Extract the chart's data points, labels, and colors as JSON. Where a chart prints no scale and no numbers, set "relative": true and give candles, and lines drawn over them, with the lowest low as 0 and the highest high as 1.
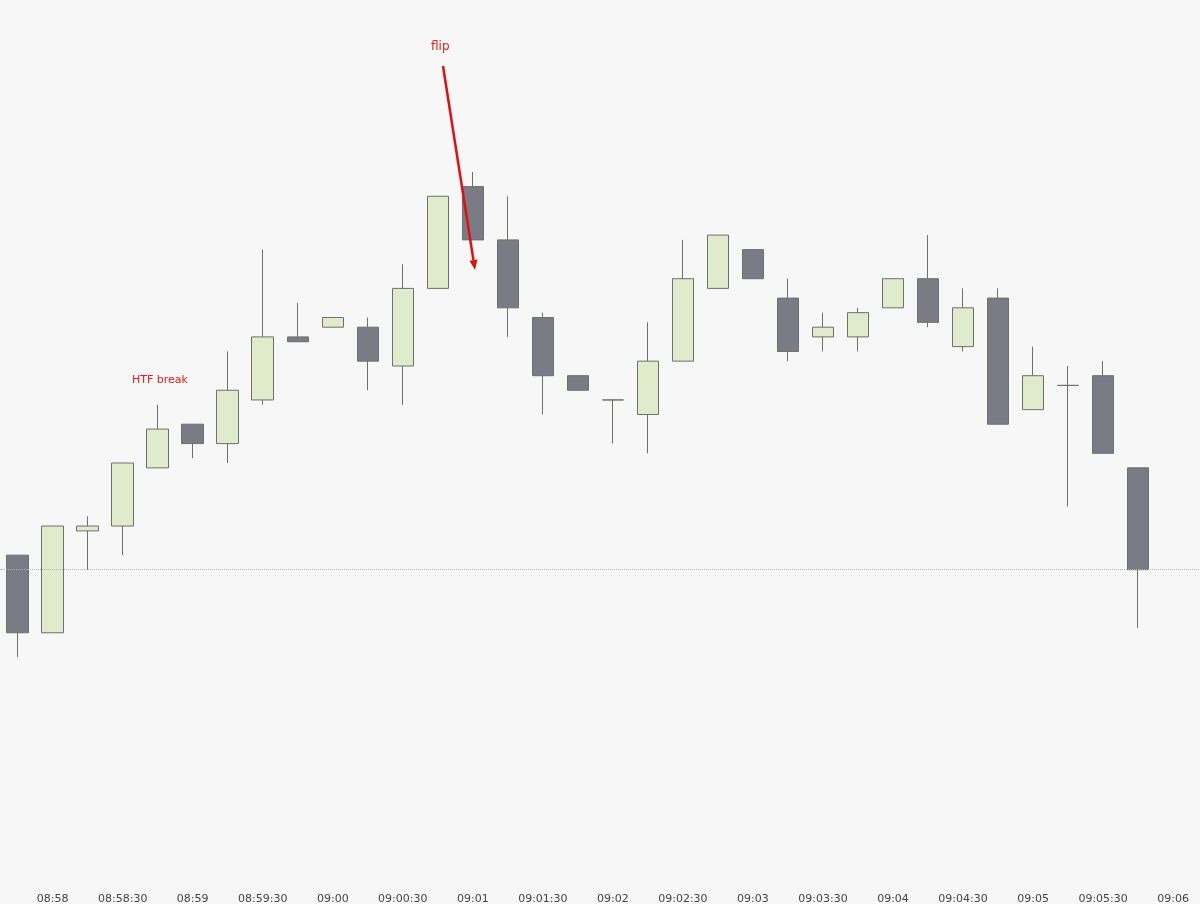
{
  "chart_data": {
    "type": "candlestick",
    "relative": true,
    "x": [
      8.9625,
      8.966667,
      8.970833,
      8.975,
      8.979167,
      8.983333,
      8.9875,
      8.991667,
      8.995833,
      9,
      9.004167,
      9.008333,
      9.0125,
      9.016667,
      9.020833,
      9.025,
      9.029167,
      9.033333,
      9.0375,
      9.041667,
      9.045833,
      9.05,
      9.054167,
      9.058333,
      9.0625,
      9.066667,
      9.070833,
      9.075,
      9.079167,
      9.083333,
      9.0875,
      9.091667,
      9.095833
    ],
    "ohlc": [
      [
        0.21,
        0.21,
        0,
        0.05
      ],
      [
        0.05,
        0.27,
        0.05,
        0.27
      ],
      [
        0.26,
        0.29,
        0.18,
        0.27
      ],
      [
        0.27,
        0.4,
        0.21,
        0.4
      ],
      [
        0.39,
        0.52,
        0.39,
        0.47
      ],
      [
        0.48,
        0.48,
        0.41,
        0.44
      ],
      [
        0.44,
        0.63,
        0.4,
        0.55
      ],
      [
        0.53,
        0.84,
        0.52,
        0.66
      ],
      [
        0.66,
        0.73,
        0.65,
        0.65
      ],
      [
        0.68,
        0.7,
        0.68,
        0.7
      ],
      [
        0.68,
        0.7,
        0.55,
        0.61
      ],
      [
        0.6,
        0.81,
        0.52,
        0.76
      ],
      [
        0.76,
        0.95,
        0.76,
        0.95
      ],
      [
        0.97,
        1,
        0.86,
        0.86
      ],
      [
        0.86,
        0.95,
        0.66,
        0.72
      ],
      [
        0.7,
        0.71,
        0.5,
        0.58
      ],
      [
        0.58,
        0.58,
        0.55,
        0.55
      ],
      [
        0.53,
        0.53,
        0.44,
        0.53
      ],
      [
        0.5,
        0.69,
        0.42,
        0.61
      ],
      [
        0.61,
        0.86,
        0.61,
        0.78
      ],
      [
        0.76,
        0.87,
        0.76,
        0.87
      ],
      [
        0.84,
        0.84,
        0.78,
        0.78
      ],
      [
        0.74,
        0.78,
        0.61,
        0.63
      ],
      [
        0.66,
        0.71,
        0.63,
        0.68
      ],
      [
        0.66,
        0.72,
        0.63,
        0.71
      ],
      [
        0.72,
        0.78,
        0.72,
        0.78
      ],
      [
        0.78,
        0.87,
        0.68,
        0.69
      ],
      [
        0.64,
        0.76,
        0.63,
        0.72
      ],
      [
        0.74,
        0.76,
        0.48,
        0.48
      ],
      [
        0.51,
        0.64,
        0.51,
        0.58
      ],
      [
        0.56,
        0.6,
        0.31,
        0.56
      ],
      [
        0.58,
        0.61,
        0.42,
        0.42
      ],
      [
        0.39,
        0.39,
        0.06,
        0.18
      ]
    ],
    "colors": [
      "#7b7b85",
      "#e0ebcb",
      "#e0ebcb",
      "#e0ebcb",
      "#e0ebcb",
      "#7b7b85",
      "#e0ebcb",
      "#e0ebcb",
      "#7b7b85",
      "#e0ebcb",
      "#7b7b85",
      "#e0ebcb",
      "#e0ebcb",
      "#7b7b85",
      "#7b7b85",
      "#7b7b85",
      "#7b7b85",
      "#6b7268",
      "#e0ebcb",
      "#e0ebcb",
      "#e0ebcb",
      "#7b7b85",
      "#7b7b85",
      "#e0ebcb",
      "#e0ebcb",
      "#e0ebcb",
      "#7b7b85",
      "#e0ebcb",
      "#7b7b85",
      "#e0ebcb",
      "#6b7268",
      "#7b7b85",
      "#7b7b85"
    ],
    "xlim": [
      8.9604,
      9.1032
    ],
    "xticks": [
      {
        "value": 8.966667,
        "label": "08:58"
      },
      {
        "value": 8.975,
        "label": "08:58:30"
      },
      {
        "value": 8.983333,
        "label": "08:59"
      },
      {
        "value": 8.991667,
        "label": "08:59:30"
      },
      {
        "value": 9,
        "label": "09:00"
      },
      {
        "value": 9.008333,
        "label": "09:00:30"
      },
      {
        "value": 9.016667,
        "label": "09:01"
      },
      {
        "value": 9.025,
        "label": "09:01:30"
      },
      {
        "value": 9.033333,
        "label": "09:02"
      },
      {
        "value": 9.041667,
        "label": "09:02:30"
      },
      {
        "value": 9.05,
        "label": "09:03"
      },
      {
        "value": 9.058333,
        "label": "09:03:30"
      },
      {
        "value": 9.066667,
        "label": "09:04"
      },
      {
        "value": 9.075,
        "label": "09:04:30"
      },
      {
        "value": 9.083333,
        "label": "09:05"
      },
      {
        "value": 9.091667,
        "label": "09:05:30"
      },
      {
        "value": 9.1,
        "label": "09:06"
      }
    ],
    "ref_lines": [
      {
        "axis": "y",
        "value": 0.18,
        "color": "#b0b0b8",
        "line_style": "dotted"
      }
    ],
    "annotations": [
      "flip",
      "HTF break"
    ],
    "grid": false
  }
}
